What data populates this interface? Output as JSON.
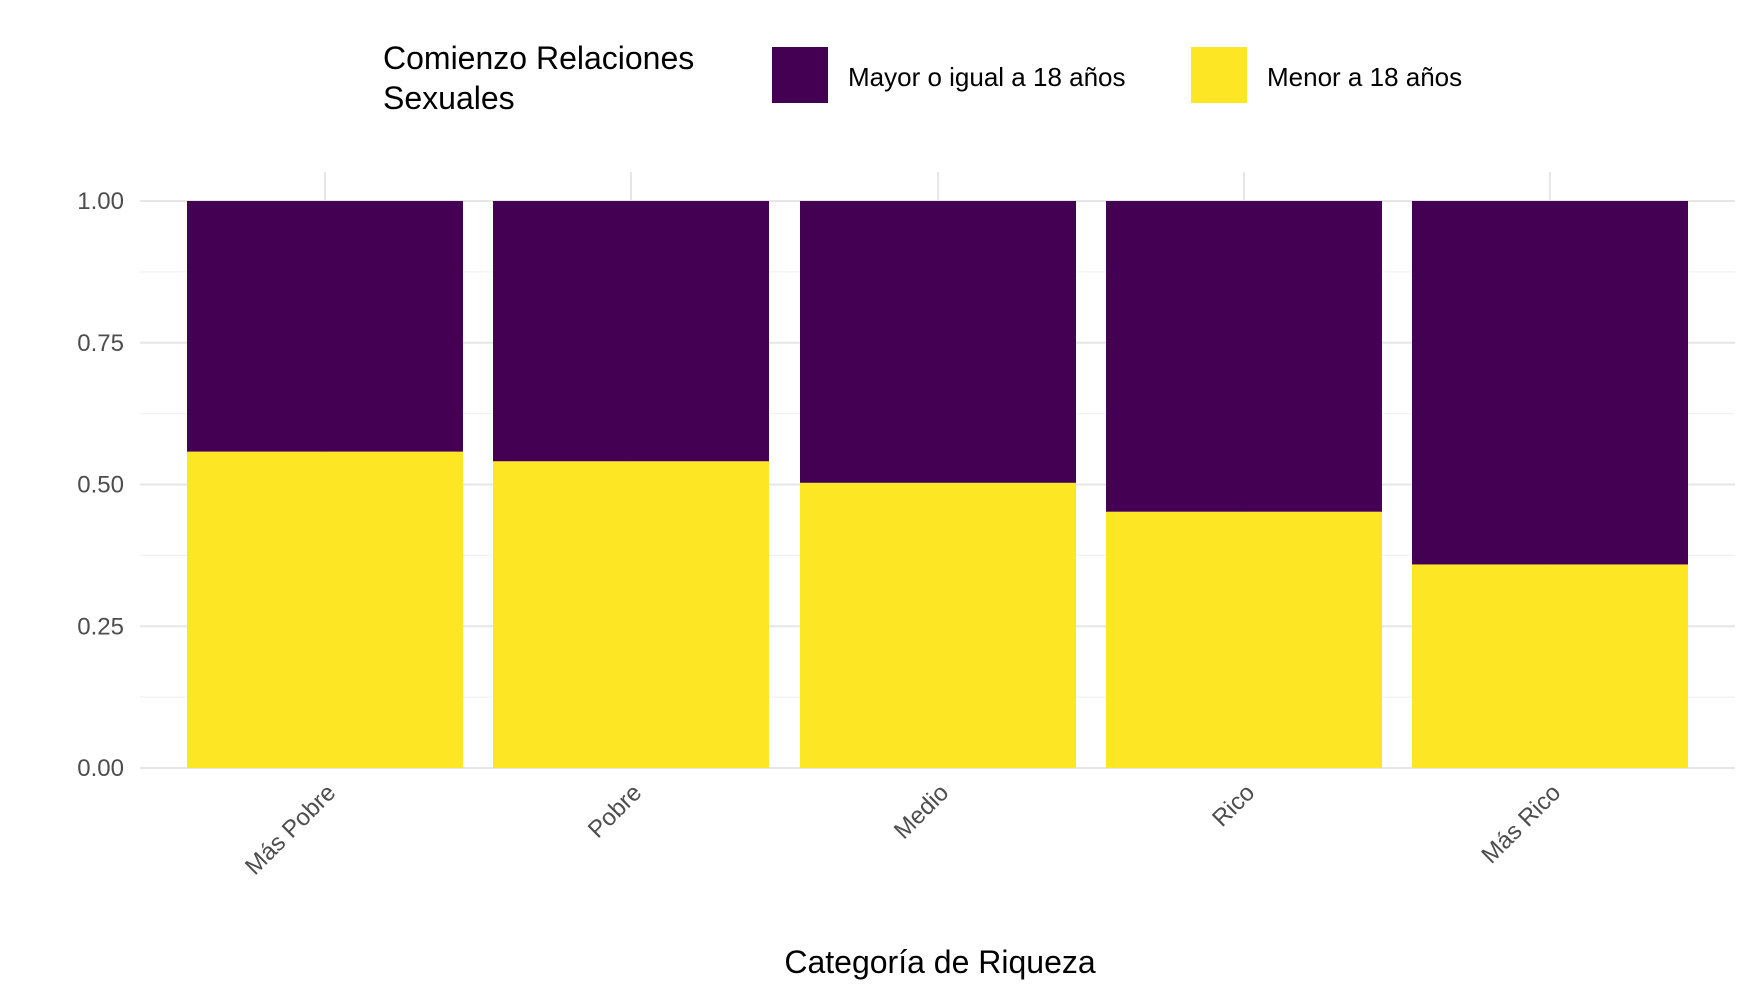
{
  "chart_data": {
    "type": "bar",
    "stacked": true,
    "categories": [
      "Más Pobre",
      "Pobre",
      "Medio",
      "Rico",
      "Más Rico"
    ],
    "series": [
      {
        "name": "Menor a 18 años",
        "color": "#FDE725",
        "values": [
          0.558,
          0.541,
          0.503,
          0.452,
          0.359
        ]
      },
      {
        "name": "Mayor o igual a 18 años",
        "color": "#440154",
        "values": [
          0.442,
          0.459,
          0.497,
          0.548,
          0.641
        ]
      }
    ],
    "legend": {
      "title_lines": [
        "Comienzo Relaciones",
        "Sexuales"
      ],
      "entries": [
        {
          "label": "Mayor o igual a 18 años",
          "color": "#440154"
        },
        {
          "label": "Menor a 18 años",
          "color": "#FDE725"
        }
      ],
      "position": "top"
    },
    "xlabel": "Categoría de Riqueza",
    "ylabel": "",
    "ylim": [
      0,
      1
    ],
    "yticks": [
      "0.00",
      "0.25",
      "0.50",
      "0.75",
      "1.00"
    ],
    "ytick_values": [
      0,
      0.25,
      0.5,
      0.75,
      1
    ],
    "grid": true
  }
}
